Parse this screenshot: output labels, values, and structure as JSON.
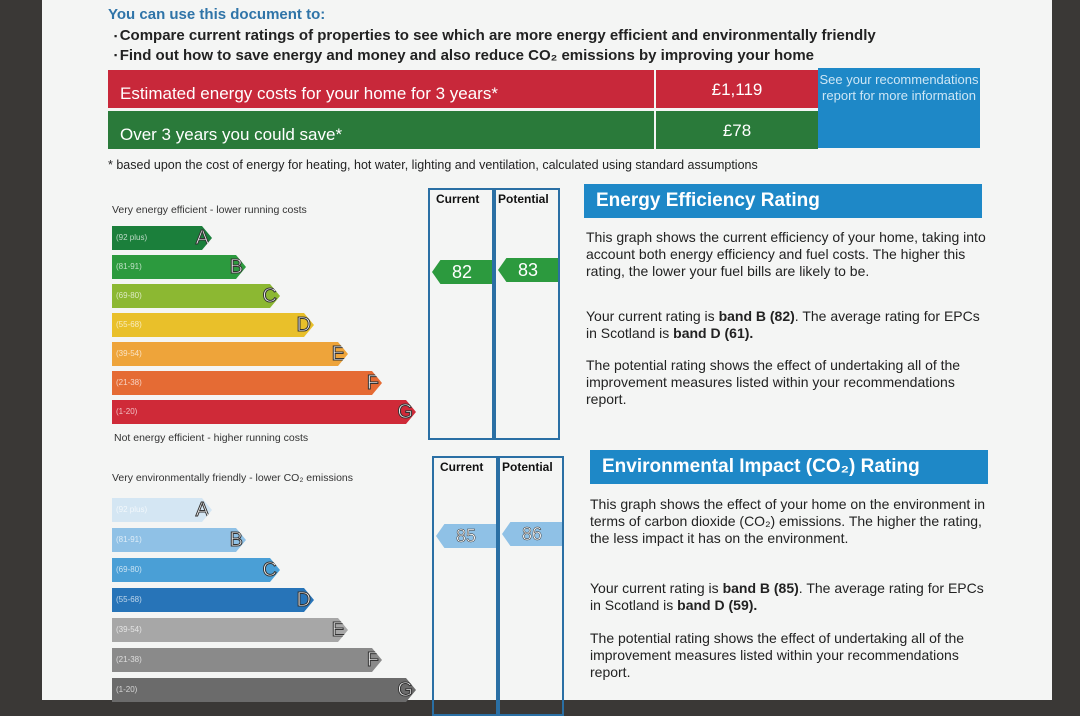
{
  "intro": {
    "title": "You can use this document to:",
    "bullets": [
      "Compare current ratings of properties to see which are more energy efficient and environmentally friendly",
      "Find out how to save energy and money and also reduce CO₂ emissions by improving your home"
    ]
  },
  "costs": {
    "estimated_label": "Estimated energy costs for your home for 3 years*",
    "estimated_value": "£1,119",
    "save_label": "Over 3 years you could save*",
    "save_value": "£78",
    "see_recommendations": "See your recommendations report for more information",
    "footnote": "* based upon the cost of energy for heating, hot water, lighting and ventilation, calculated using standard assumptions"
  },
  "energy": {
    "top_label": "Very energy efficient - lower running costs",
    "bottom_label": "Not energy efficient - higher running costs",
    "current_header": "Current",
    "potential_header": "Potential",
    "current": "82",
    "potential": "83",
    "bands": [
      {
        "range": "(92 plus)",
        "letter": "A",
        "color": "#1b7f3b"
      },
      {
        "range": "(81-91)",
        "letter": "B",
        "color": "#2c9a3e"
      },
      {
        "range": "(69-80)",
        "letter": "C",
        "color": "#8cb832"
      },
      {
        "range": "(55-68)",
        "letter": "D",
        "color": "#e9c02a"
      },
      {
        "range": "(39-54)",
        "letter": "E",
        "color": "#eea43a"
      },
      {
        "range": "(21-38)",
        "letter": "F",
        "color": "#e56b34"
      },
      {
        "range": "(1-20)",
        "letter": "G",
        "color": "#cf2a38"
      }
    ],
    "heading": "Energy Efficiency Rating",
    "para1": "This graph shows the current efficiency of your home, taking into account both energy efficiency and fuel costs. The higher this rating, the lower your fuel bills are likely to be.",
    "para2_a": "Your current rating is ",
    "para2_b": "band B (82)",
    "para2_c": ". The average rating for EPCs in Scotland is ",
    "para2_d": "band D (61).",
    "para3": "The potential rating shows the effect of undertaking all of the improvement measures listed within your recommendations report."
  },
  "environment": {
    "top_label": "Very environmentally friendly - lower CO₂ emissions",
    "current_header": "Current",
    "potential_header": "Potential",
    "current": "85",
    "potential": "86",
    "bands": [
      {
        "range": "(92 plus)",
        "letter": "A",
        "color": "#d4e6f3"
      },
      {
        "range": "(81-91)",
        "letter": "B",
        "color": "#8fc1e6"
      },
      {
        "range": "(69-80)",
        "letter": "C",
        "color": "#4a9fd6"
      },
      {
        "range": "(55-68)",
        "letter": "D",
        "color": "#2774b8"
      },
      {
        "range": "(39-54)",
        "letter": "E",
        "color": "#a7a7a7"
      },
      {
        "range": "(21-38)",
        "letter": "F",
        "color": "#8a8a8a"
      },
      {
        "range": "(1-20)",
        "letter": "G",
        "color": "#6b6b6b"
      }
    ],
    "heading": "Environmental Impact (CO₂) Rating",
    "para1": "This graph shows the effect of your home on the environment in terms of carbon dioxide (CO₂) emissions. The higher the rating, the less impact it has on the environment.",
    "para2_a": "Your current rating is ",
    "para2_b": "band B (85)",
    "para2_c": ". The average rating for EPCs in Scotland is ",
    "para2_d": "band D (59).",
    "para3": "The potential rating shows the effect of undertaking all of the improvement measures listed within your recommendations report."
  }
}
